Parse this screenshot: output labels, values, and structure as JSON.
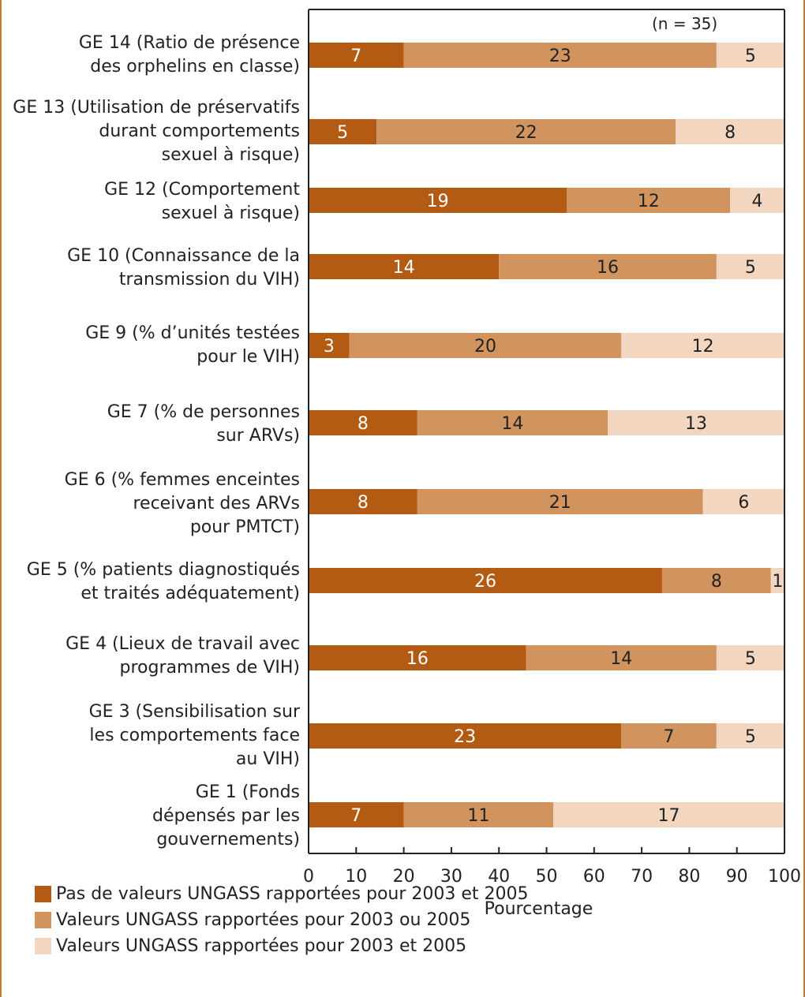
{
  "colors": {
    "series_1": "#b35b12",
    "series_2": "#d2945f",
    "series_3": "#f2d6c0",
    "frame": "#c9762e",
    "axis": "#222222"
  },
  "chart_data": {
    "type": "bar",
    "orientation": "horizontal",
    "stacked": true,
    "note": "(n = 35)",
    "xlabel": "Pourcentage",
    "xlim": [
      0,
      100
    ],
    "xticks": [
      "0",
      "10",
      "20",
      "30",
      "40",
      "50",
      "60",
      "70",
      "80",
      "90",
      "100"
    ],
    "total": 35,
    "categories": [
      "GE 14 (Ratio de présence\ndes orphelins en classe)",
      "GE 13 (Utilisation de préservatifs\ndurant comportements \nsexuel à risque)",
      "GE 12 (Comportement \nsexuel à risque)",
      "GE 10 (Connaissance de la\ntransmission du VIH)",
      "GE 9 (% d’unités testées\npour le VIH)",
      "GE 7 (% de personnes\nsur ARVs)",
      "GE 6 (% femmes enceintes\nreceivant des ARVs\npour PMTCT)",
      "GE 5 (% patients diagnostiqués\net traités adéquatement)",
      "GE 4 (Lieux de travail avec\nprogrammes de VIH)",
      "GE 3 (Sensibilisation sur\nles comportements face\nau VIH)",
      "GE 1 (Fonds \ndépensés par les \ngouvernements)"
    ],
    "series": [
      {
        "name": "Pas de valeurs UNGASS rapportées pour 2003 et 2005",
        "values": [
          7,
          5,
          19,
          14,
          3,
          8,
          8,
          26,
          16,
          23,
          7
        ]
      },
      {
        "name": "Valeurs UNGASS rapportées pour 2003 ou 2005",
        "values": [
          23,
          22,
          12,
          16,
          20,
          14,
          21,
          8,
          14,
          7,
          11
        ]
      },
      {
        "name": "Valeurs UNGASS rapportées pour 2003 et 2005",
        "values": [
          5,
          8,
          4,
          5,
          12,
          13,
          6,
          1,
          5,
          5,
          17
        ]
      }
    ],
    "legend_position": "bottom-left"
  }
}
